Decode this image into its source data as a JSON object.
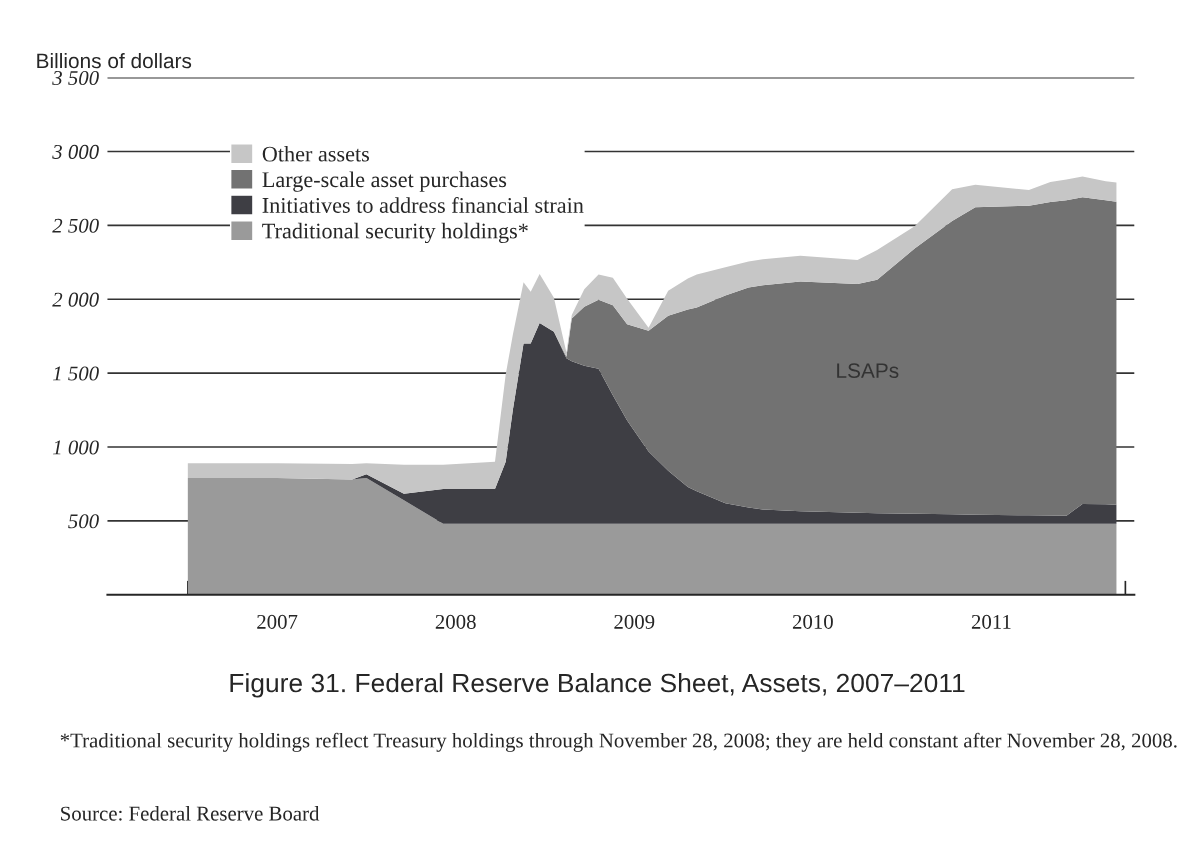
{
  "chart_data": {
    "type": "area",
    "stacked": true,
    "title": "Figure 31. Federal Reserve Balance Sheet, Assets, 2007–2011",
    "ylabel": "Billions of dollars",
    "annotations": [
      "LSAPs",
      "*Traditional security holdings reflect Treasury holdings through November 28, 2008; they are held constant after November 28, 2008.",
      "Source: Federal Reserve Board"
    ],
    "x": [
      2007.0,
      2007.5,
      2007.92,
      2008.0,
      2008.21,
      2008.43,
      2008.72,
      2008.78,
      2008.82,
      2008.88,
      2008.92,
      2008.97,
      2009.05,
      2009.12,
      2009.15,
      2009.22,
      2009.3,
      2009.38,
      2009.46,
      2009.58,
      2009.69,
      2009.8,
      2009.85,
      2010.01,
      2010.14,
      2010.22,
      2010.43,
      2010.75,
      2010.86,
      2011.07,
      2011.28,
      2011.41,
      2011.71,
      2011.83,
      2011.92,
      2012.01,
      2012.14,
      2012.2
    ],
    "series": [
      {
        "name": "Traditional security holdings*",
        "color": "#9a9a9a",
        "values": [
          790,
          790,
          780,
          790,
          640,
          480,
          480,
          480,
          480,
          480,
          480,
          480,
          480,
          480,
          480,
          480,
          480,
          480,
          480,
          480,
          480,
          480,
          480,
          480,
          480,
          480,
          480,
          480,
          480,
          480,
          480,
          480,
          480,
          480,
          480,
          480,
          480,
          480
        ]
      },
      {
        "name": "Initiatives to address financial strain",
        "color": "#3e3e44",
        "values": [
          0,
          0,
          0,
          25,
          43,
          235,
          235,
          420,
          770,
          1220,
          1220,
          1360,
          1300,
          1120,
          1100,
          1070,
          1050,
          870,
          700,
          490,
          360,
          249,
          220,
          140,
          110,
          97,
          85,
          75,
          72,
          69,
          65,
          62,
          58,
          56,
          55,
          135,
          133,
          130
        ]
      },
      {
        "name": "Large-scale asset purchases",
        "color": "#727272",
        "values": [
          0,
          0,
          0,
          0,
          0,
          0,
          0,
          0,
          0,
          0,
          0,
          0,
          0,
          10,
          289,
          400,
          467,
          610,
          651,
          816,
          1048,
          1201,
          1244,
          1405,
          1490,
          1518,
          1555,
          1548,
          1580,
          1794,
          1985,
          2081,
          2095,
          2122,
          2135,
          2075,
          2057,
          2050
        ]
      },
      {
        "name": "Other assets",
        "color": "#c6c6c6",
        "values": [
          100,
          100,
          105,
          75,
          197,
          165,
          185,
          590,
          510,
          415,
          350,
          330,
          230,
          30,
          25,
          117,
          171,
          185,
          172,
          21,
          170,
          210,
          223,
          192,
          176,
          175,
          175,
          162,
          201,
          151,
          215,
          151,
          106,
          135,
          140,
          141,
          129,
          130
        ]
      }
    ],
    "xlim": [
      2006.55,
      2012.3
    ],
    "xticks": [
      {
        "value": 2007,
        "label": null
      },
      {
        "value": 2007.25,
        "label": null
      },
      {
        "value": 2007.5,
        "label": "2007"
      },
      {
        "value": 2007.75,
        "label": null
      },
      {
        "value": 2008,
        "label": null
      },
      {
        "value": 2008.25,
        "label": null
      },
      {
        "value": 2008.5,
        "label": "2008"
      },
      {
        "value": 2008.75,
        "label": null
      },
      {
        "value": 2009,
        "label": null
      },
      {
        "value": 2009.25,
        "label": null
      },
      {
        "value": 2009.5,
        "label": "2009"
      },
      {
        "value": 2009.75,
        "label": null
      },
      {
        "value": 2010,
        "label": null
      },
      {
        "value": 2010.25,
        "label": null
      },
      {
        "value": 2010.5,
        "label": "2010"
      },
      {
        "value": 2010.75,
        "label": null
      },
      {
        "value": 2011,
        "label": null
      },
      {
        "value": 2011.25,
        "label": null
      },
      {
        "value": 2011.5,
        "label": "2011"
      },
      {
        "value": 2011.75,
        "label": null
      },
      {
        "value": 2012,
        "label": null
      },
      {
        "value": 2012.25,
        "label": null
      }
    ],
    "ylim": [
      0,
      3500
    ],
    "yticks": [
      {
        "value": 500,
        "label": "500"
      },
      {
        "value": 1000,
        "label": "1 000"
      },
      {
        "value": 1500,
        "label": "1 500"
      },
      {
        "value": 2000,
        "label": "2 000"
      },
      {
        "value": 2500,
        "label": "2 500"
      },
      {
        "value": 3000,
        "label": "3 000"
      },
      {
        "value": 3500,
        "label": "3 500"
      }
    ],
    "grid": "y",
    "legend": "top left"
  }
}
